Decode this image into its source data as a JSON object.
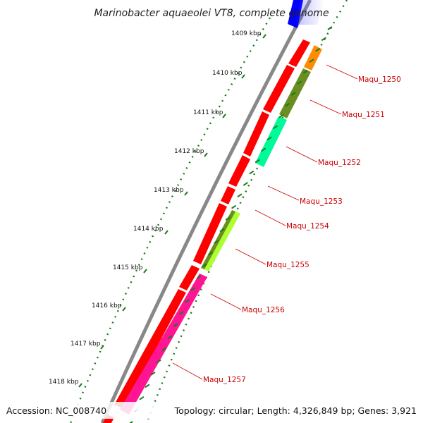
{
  "title": "Marinobacter aquaeolei VT8, complete genome",
  "accession": "Accession: NC_008740",
  "topology": "Topology: circular; Length: 4,326,849 bp; Genes: 3,921",
  "kbp_ticks": [
    "1409 kbp",
    "1410 kbp",
    "1411 kbp",
    "1412 kbp",
    "1413 kbp",
    "1414 kbp",
    "1415 kbp",
    "1416 kbp",
    "1417 kbp",
    "1418 kbp"
  ],
  "gene_labels": [
    "Maqu_1250",
    "Maqu_1251",
    "Maqu_1252",
    "Maqu_1253",
    "Maqu_1254",
    "Maqu_1255",
    "Maqu_1256",
    "Maqu_1257"
  ],
  "colors": {
    "forward_cds": "#ff0000",
    "backbone": "#888888",
    "tick_green": "#1a7a1a",
    "label_red": "#cc0000",
    "blue_feature": "#0000ff",
    "maqu_1250": "#ff8c00",
    "maqu_1251": "#6b8e23",
    "maqu_1252": "#00fa9a",
    "maqu_1255": "#adff2f",
    "maqu_1256": "#ff1493"
  }
}
